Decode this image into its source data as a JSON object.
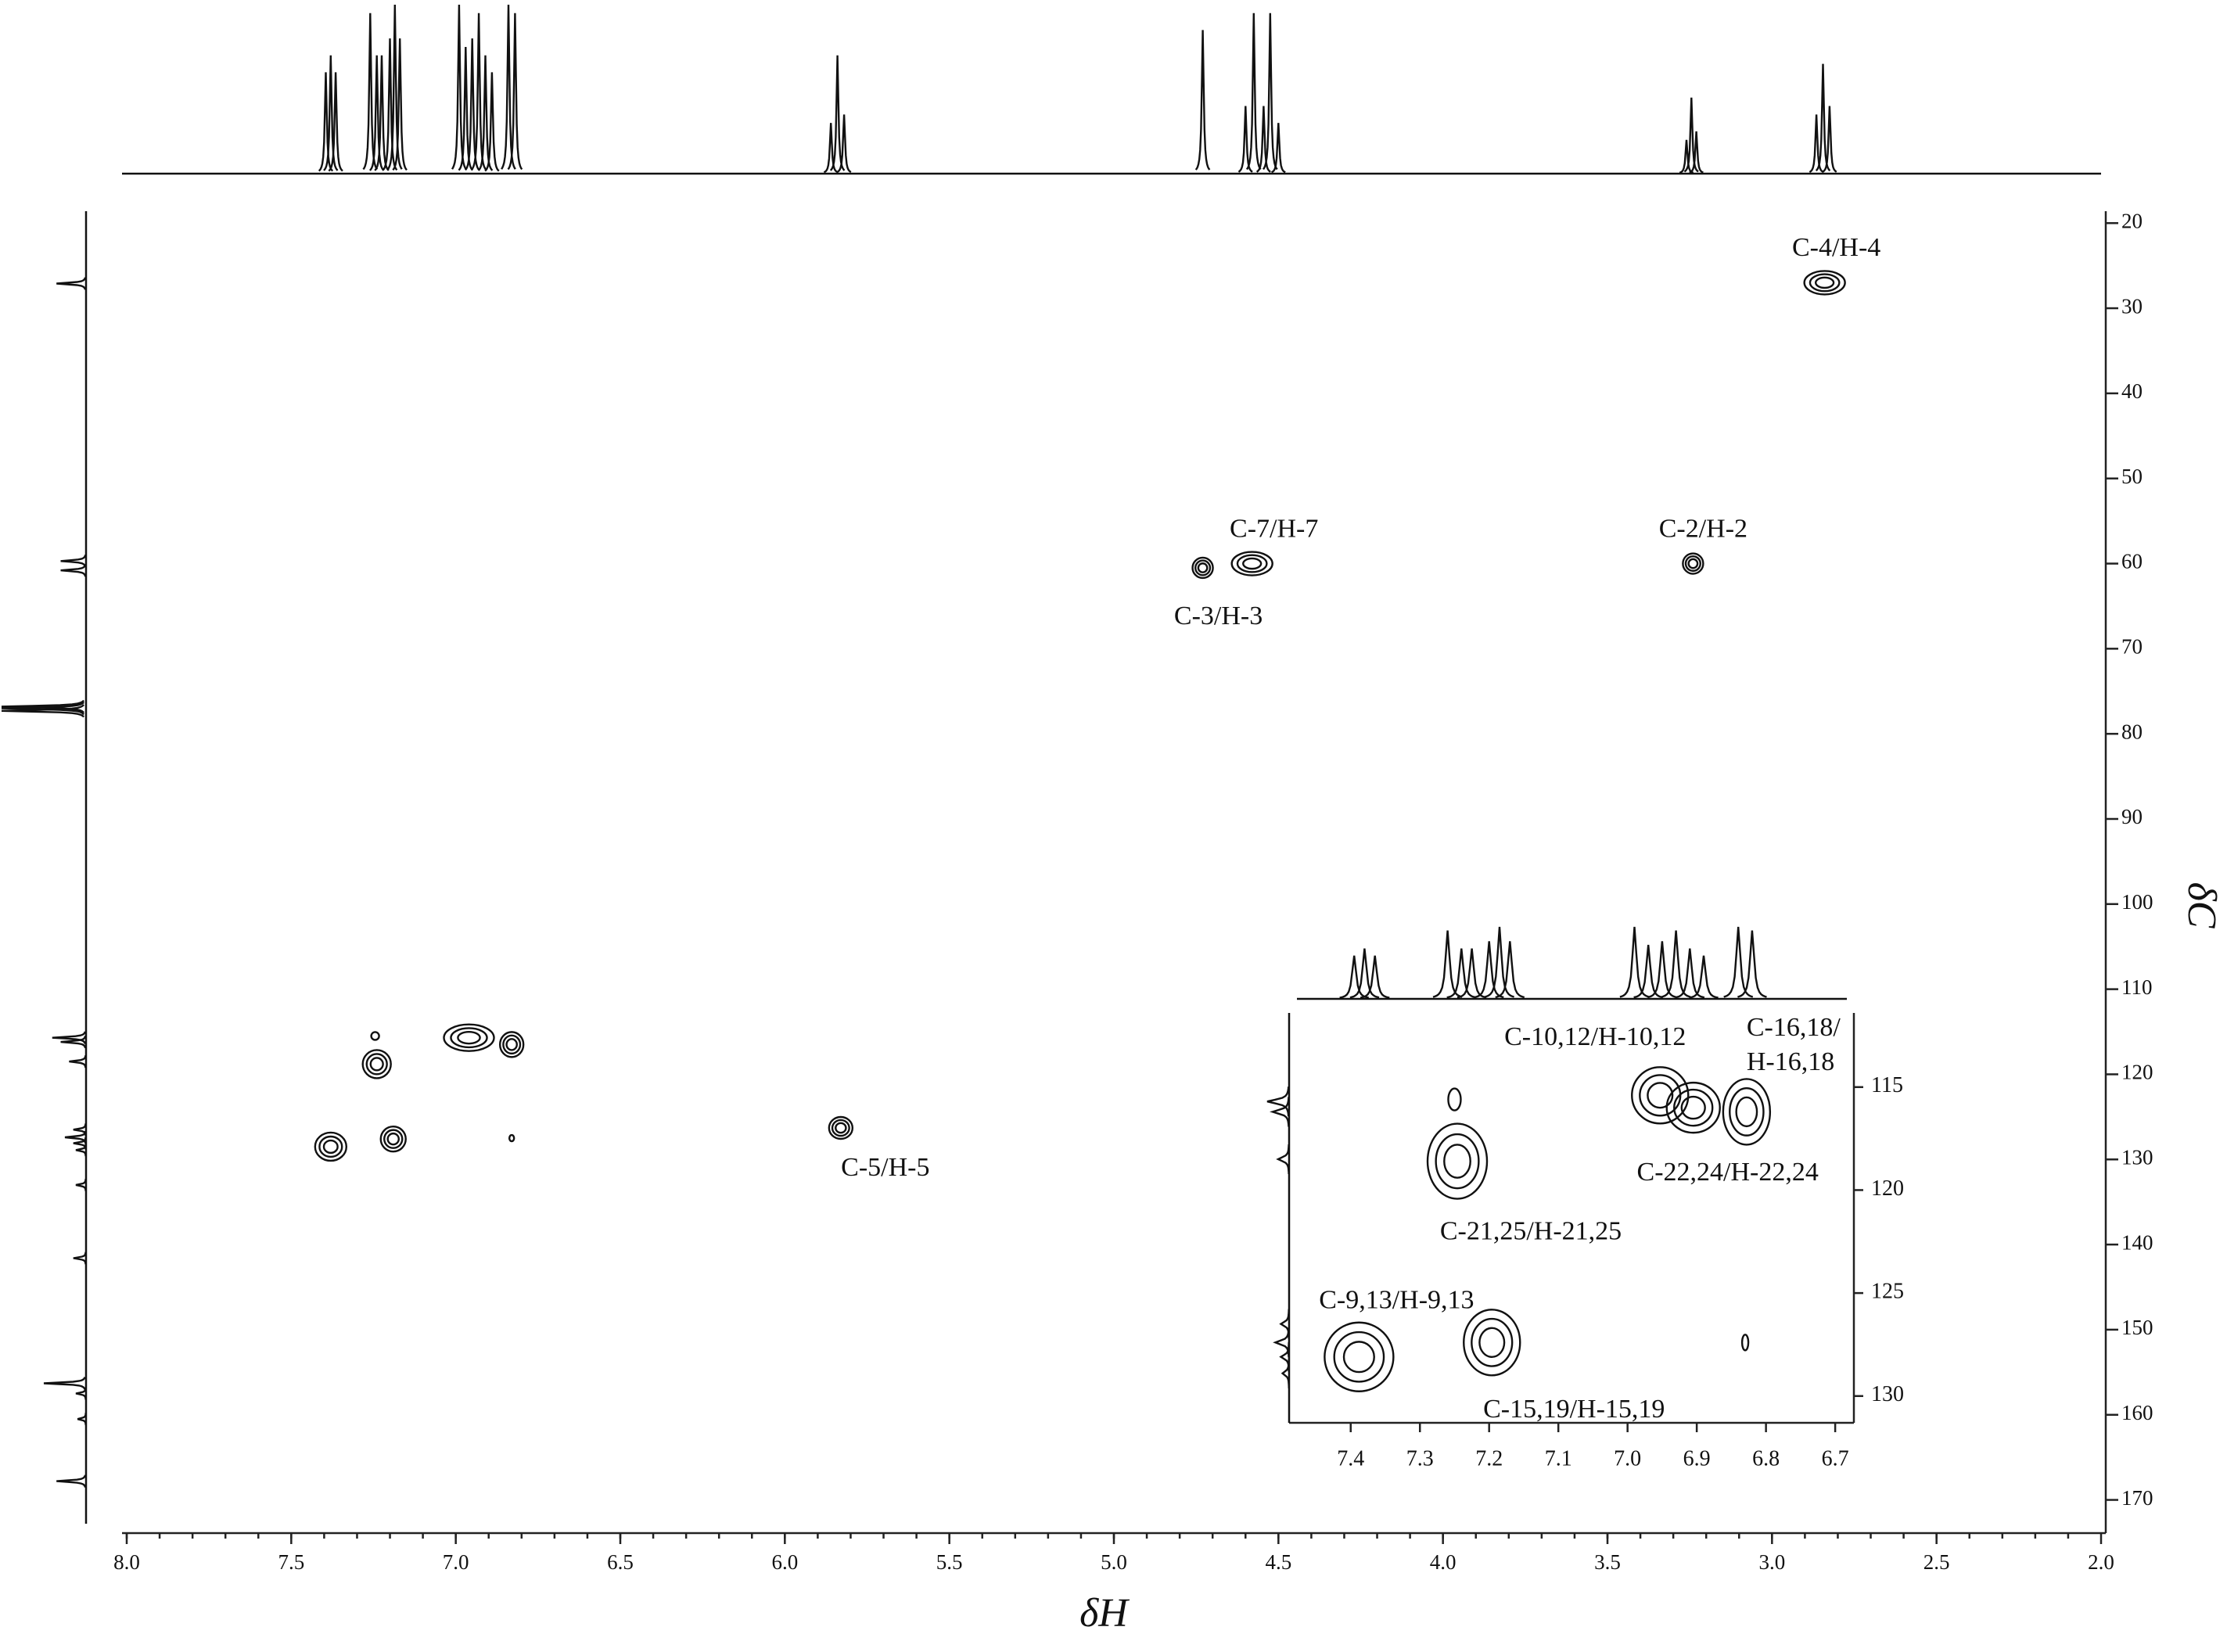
{
  "chart_data": {
    "type": "hsqc",
    "x_label": "δH",
    "y_label": "δC",
    "xlim": [
      8.0,
      2.0
    ],
    "xticks": [
      {
        "value": 8,
        "label": "8.0"
      },
      7.5,
      {
        "value": 7,
        "label": "7.0"
      },
      6.5,
      {
        "value": 6,
        "label": "6.0"
      },
      5.5,
      {
        "value": 5,
        "label": "5.0"
      },
      4.5,
      {
        "value": 4,
        "label": "4.0"
      },
      3.5,
      {
        "value": 3,
        "label": "3.0"
      },
      2.5,
      {
        "value": 2,
        "label": "2.0"
      }
    ],
    "ylim": [
      18.6,
      173.9
    ],
    "yticks": [
      20,
      30,
      40,
      50,
      60,
      70,
      80,
      90,
      100,
      110,
      120,
      130,
      140,
      150,
      160,
      170
    ],
    "peaks": [
      {
        "x": 2.84,
        "y": 27,
        "label": "C-4/H-4"
      },
      {
        "x": 4.58,
        "y": 60,
        "label": "C-7/H-7"
      },
      {
        "x": 4.73,
        "y": 60.5,
        "label": "C-3/H-3"
      },
      {
        "x": 3.24,
        "y": 60,
        "label": "C-2/H-2"
      },
      {
        "x": 5.83,
        "y": 126.3,
        "label": "C-5/H-5"
      },
      {
        "x": 7.38,
        "y": 128.5,
        "label": null
      },
      {
        "x": 7.19,
        "y": 127.6,
        "label": null
      },
      {
        "x": 7.24,
        "y": 118.8,
        "label": null
      },
      {
        "x": 7.245,
        "y": 115.5,
        "label": null
      },
      {
        "x": 6.96,
        "y": 115.7,
        "label": null
      },
      {
        "x": 6.83,
        "y": 116.5,
        "label": null
      },
      {
        "x": 6.83,
        "y": 127.5,
        "label": null
      }
    ],
    "h_spectrum": [
      {
        "x": 7.395,
        "height": 0.6
      },
      {
        "x": 7.38,
        "height": 0.7
      },
      {
        "x": 7.365,
        "height": 0.6
      },
      {
        "x": 7.26,
        "height": 0.95
      },
      {
        "x": 7.24,
        "height": 0.7
      },
      {
        "x": 7.225,
        "height": 0.7
      },
      {
        "x": 7.2,
        "height": 0.8
      },
      {
        "x": 7.185,
        "height": 1.0
      },
      {
        "x": 7.17,
        "height": 0.8
      },
      {
        "x": 6.99,
        "height": 1.0
      },
      {
        "x": 6.97,
        "height": 0.75
      },
      {
        "x": 6.95,
        "height": 0.8
      },
      {
        "x": 6.93,
        "height": 0.95
      },
      {
        "x": 6.91,
        "height": 0.7
      },
      {
        "x": 6.89,
        "height": 0.6
      },
      {
        "x": 6.84,
        "height": 1.0
      },
      {
        "x": 6.82,
        "height": 0.95
      },
      {
        "x": 5.86,
        "height": 0.3
      },
      {
        "x": 5.84,
        "height": 0.7
      },
      {
        "x": 5.82,
        "height": 0.35
      },
      {
        "x": 4.73,
        "height": 0.85
      },
      {
        "x": 4.6,
        "height": 0.4
      },
      {
        "x": 4.575,
        "height": 0.95
      },
      {
        "x": 4.545,
        "height": 0.4
      },
      {
        "x": 4.525,
        "height": 0.95
      },
      {
        "x": 4.5,
        "height": 0.3
      },
      {
        "x": 3.26,
        "height": 0.2
      },
      {
        "x": 3.245,
        "height": 0.45
      },
      {
        "x": 3.23,
        "height": 0.25
      },
      {
        "x": 2.865,
        "height": 0.35
      },
      {
        "x": 2.845,
        "height": 0.65
      },
      {
        "x": 2.825,
        "height": 0.4
      }
    ],
    "c_spectrum": [
      {
        "y": 27.1,
        "height": 0.35
      },
      {
        "y": 59.7,
        "height": 0.3
      },
      {
        "y": 60.8,
        "height": 0.3
      },
      {
        "y": 76.8,
        "height": 1.0
      },
      {
        "y": 77.0,
        "height": 1.0
      },
      {
        "y": 77.3,
        "height": 1.0
      },
      {
        "y": 115.7,
        "height": 0.4
      },
      {
        "y": 116.2,
        "height": 0.3
      },
      {
        "y": 118.5,
        "height": 0.2
      },
      {
        "y": 126.5,
        "height": 0.15
      },
      {
        "y": 127.4,
        "height": 0.25
      },
      {
        "y": 128.1,
        "height": 0.15
      },
      {
        "y": 128.9,
        "height": 0.12
      },
      {
        "y": 133.0,
        "height": 0.12
      },
      {
        "y": 141.6,
        "height": 0.15
      },
      {
        "y": 156.3,
        "height": 0.5
      },
      {
        "y": 157.5,
        "height": 0.12
      },
      {
        "y": 160.5,
        "height": 0.1
      },
      {
        "y": 167.8,
        "height": 0.35
      }
    ],
    "inset": {
      "xlim": [
        7.489,
        6.673
      ],
      "xticks": [
        7.4,
        7.3,
        7.2,
        7.1,
        {
          "value": 7,
          "label": "7.0"
        },
        6.9,
        6.8,
        6.7
      ],
      "ylim": [
        111.4,
        131.3
      ],
      "yticks": [
        115,
        120,
        125,
        130
      ],
      "peaks": [
        {
          "x": 6.953,
          "y": 115.4,
          "label": "C-10,12/H-10,12"
        },
        {
          "x": 6.905,
          "y": 116.0,
          "label": "C-22,24/H-22,24"
        },
        {
          "x": 6.828,
          "y": 116.2,
          "label": [
            "C-16,18/",
            "H-16,18"
          ]
        },
        {
          "x": 7.25,
          "y": 115.6,
          "label": null
        },
        {
          "x": 7.246,
          "y": 118.6,
          "label": "C-21,25/H-21,25"
        },
        {
          "x": 7.388,
          "y": 128.1,
          "label": "C-9,13/H-9,13"
        },
        {
          "x": 7.196,
          "y": 127.4,
          "label": "C-15,19/H-15,19"
        },
        {
          "x": 6.83,
          "y": 127.4,
          "label": null
        }
      ]
    }
  }
}
